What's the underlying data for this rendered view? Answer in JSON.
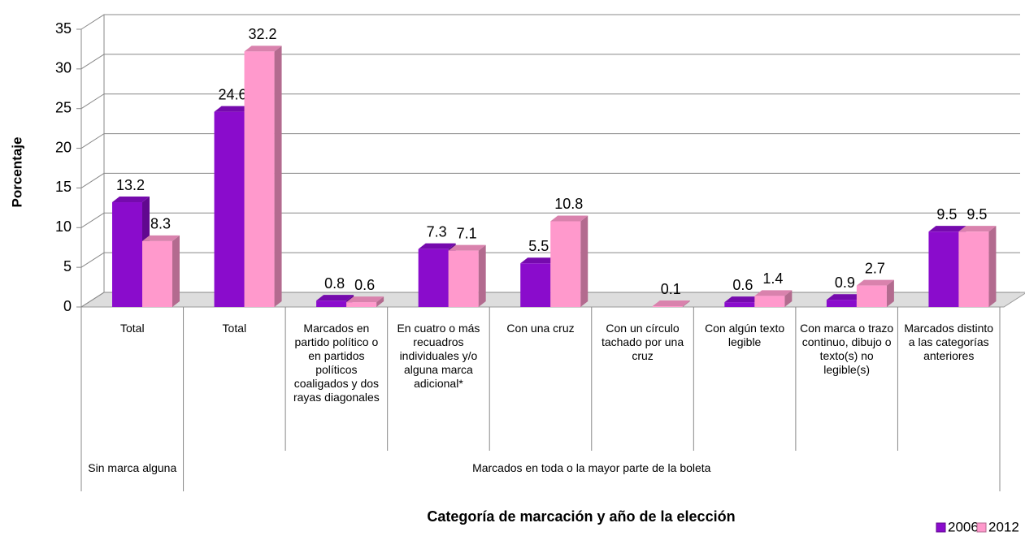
{
  "chart_data": {
    "type": "bar3d",
    "y_label": "Porcentaje",
    "x_label": "Categoría de marcación y año de la elección",
    "categories": [
      "Total",
      "Total",
      "Marcados en partido político o en partidos políticos coaligados y dos rayas diagonales",
      "En cuatro o más recuadros individuales y/o alguna marca adicional*",
      "Con una cruz",
      "Con un círculo tachado por una cruz",
      "Con algún texto legible",
      "Con marca o trazo continuo, dibujo o texto(s) no legible(s)",
      "Marcados distinto a las categorías anteriores"
    ],
    "groups": [
      {
        "label": "Sin marca alguna",
        "span": [
          0,
          0
        ]
      },
      {
        "label": "Marcados en toda o la mayor parte de la boleta",
        "span": [
          1,
          8
        ]
      }
    ],
    "series": [
      {
        "name": "2006",
        "color": "#8a0ccc",
        "values": [
          13.2,
          24.6,
          0.8,
          7.3,
          5.5,
          null,
          0.6,
          0.9,
          9.5
        ]
      },
      {
        "name": "2012",
        "color": "#ff99cc",
        "values": [
          8.3,
          32.2,
          0.6,
          7.1,
          10.8,
          0.1,
          1.4,
          2.7,
          9.5
        ]
      }
    ],
    "ylim": [
      0,
      35
    ],
    "yticks": [
      0,
      5,
      10,
      15,
      20,
      25,
      30,
      35
    ],
    "grid": true,
    "legend": "bottom-right"
  }
}
